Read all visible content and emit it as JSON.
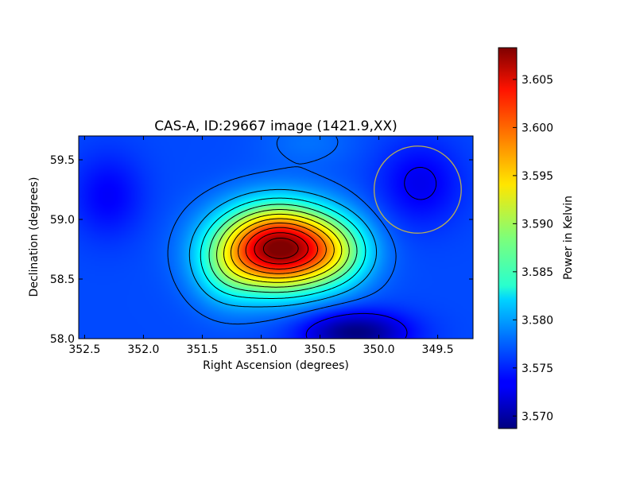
{
  "chart_data": {
    "type": "heatmap",
    "title": "CAS-A, ID:29667 image (1421.9,XX)",
    "xlabel": "Right Ascension (degrees)",
    "ylabel": "Declination (degrees)",
    "xlim": [
      352.55,
      349.2
    ],
    "ylim": [
      58.0,
      59.7
    ],
    "x_ticks": [
      "352.5",
      "352.0",
      "351.5",
      "351.0",
      "350.5",
      "350.0",
      "349.5"
    ],
    "x_tick_values": [
      352.5,
      352.0,
      351.5,
      351.0,
      350.5,
      350.0,
      349.5
    ],
    "y_ticks": [
      "58.0",
      "58.5",
      "59.0",
      "59.5"
    ],
    "y_tick_values": [
      58.0,
      58.5,
      59.0,
      59.5
    ],
    "colorbar": {
      "label": "Power in Kelvin",
      "range": [
        3.5687,
        3.6083
      ],
      "ticks": [
        "3.570",
        "3.575",
        "3.580",
        "3.585",
        "3.590",
        "3.595",
        "3.600",
        "3.605"
      ],
      "tick_values": [
        3.57,
        3.575,
        3.58,
        3.585,
        3.59,
        3.595,
        3.6,
        3.605
      ],
      "colormap": "jet"
    },
    "peak": {
      "ra": 350.85,
      "dec": 58.76,
      "value": 3.6083
    },
    "trough": {
      "ra": 350.2,
      "dec": 58.05,
      "value": 3.5687
    },
    "beam_circle": {
      "ra_center": 349.67,
      "dec_center": 59.25,
      "radius_deg": 0.37,
      "color": "#b8b054"
    },
    "contour_color": "#000000"
  }
}
